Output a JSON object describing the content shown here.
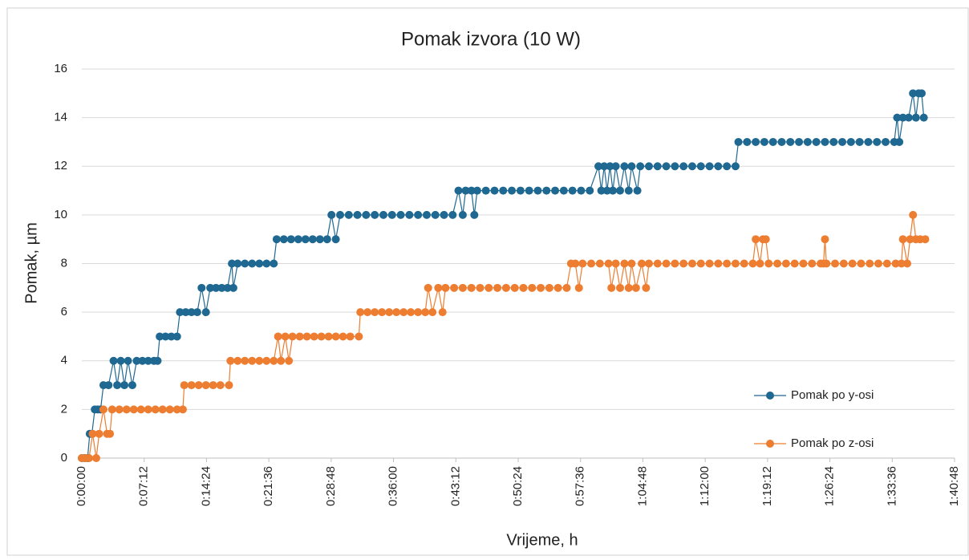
{
  "chart_data": {
    "type": "line",
    "title": "Pomak izvora (10 W)",
    "x_label": "Vrijeme, h",
    "y_label": "Pomak, µm",
    "xlim": [
      0,
      6048
    ],
    "xticks": [
      {
        "value": 0,
        "label": "0:00:00"
      },
      {
        "value": 432,
        "label": "0:07:12"
      },
      {
        "value": 864,
        "label": "0:14:24"
      },
      {
        "value": 1296,
        "label": "0:21:36"
      },
      {
        "value": 1728,
        "label": "0:28:48"
      },
      {
        "value": 2160,
        "label": "0:36:00"
      },
      {
        "value": 2592,
        "label": "0:43:12"
      },
      {
        "value": 3024,
        "label": "0:50:24"
      },
      {
        "value": 3456,
        "label": "0:57:36"
      },
      {
        "value": 3888,
        "label": "1:04:48"
      },
      {
        "value": 4320,
        "label": "1:12:00"
      },
      {
        "value": 4752,
        "label": "1:19:12"
      },
      {
        "value": 5184,
        "label": "1:26:24"
      },
      {
        "value": 5616,
        "label": "1:33:36"
      },
      {
        "value": 6048,
        "label": "1:40:48"
      }
    ],
    "ylim": [
      0,
      16
    ],
    "yticks": [
      0,
      2,
      4,
      6,
      8,
      10,
      12,
      14,
      16
    ],
    "grid": true,
    "legend_position": "right",
    "series": [
      {
        "name": "Pomak po y-osi",
        "color": "#1f6891",
        "x": [
          0,
          20,
          40,
          55,
          70,
          90,
          110,
          130,
          150,
          185,
          220,
          245,
          270,
          295,
          320,
          350,
          380,
          420,
          460,
          500,
          525,
          540,
          580,
          620,
          660,
          680,
          720,
          760,
          800,
          830,
          860,
          890,
          930,
          970,
          1010,
          1040,
          1050,
          1080,
          1130,
          1180,
          1230,
          1280,
          1330,
          1350,
          1400,
          1450,
          1500,
          1550,
          1600,
          1650,
          1700,
          1730,
          1760,
          1790,
          1850,
          1910,
          1970,
          2030,
          2090,
          2150,
          2210,
          2270,
          2330,
          2390,
          2450,
          2510,
          2570,
          2610,
          2640,
          2660,
          2700,
          2720,
          2740,
          2800,
          2860,
          2920,
          2980,
          3040,
          3100,
          3160,
          3220,
          3280,
          3340,
          3400,
          3460,
          3520,
          3580,
          3600,
          3620,
          3640,
          3660,
          3680,
          3700,
          3730,
          3760,
          3790,
          3810,
          3850,
          3870,
          3930,
          3990,
          4050,
          4110,
          4170,
          4230,
          4290,
          4350,
          4410,
          4470,
          4530,
          4550,
          4610,
          4670,
          4730,
          4790,
          4850,
          4910,
          4970,
          5030,
          5090,
          5150,
          5210,
          5270,
          5330,
          5390,
          5450,
          5510,
          5570,
          5630,
          5650,
          5665,
          5690,
          5730,
          5760,
          5780,
          5800,
          5820,
          5835
        ],
        "values": [
          0,
          0,
          0,
          1,
          1,
          2,
          2,
          2,
          3,
          3,
          4,
          3,
          4,
          3,
          4,
          3,
          4,
          4,
          4,
          4,
          4,
          5,
          5,
          5,
          5,
          6,
          6,
          6,
          6,
          7,
          6,
          7,
          7,
          7,
          7,
          8,
          7,
          8,
          8,
          8,
          8,
          8,
          8,
          9,
          9,
          9,
          9,
          9,
          9,
          9,
          9,
          10,
          9,
          10,
          10,
          10,
          10,
          10,
          10,
          10,
          10,
          10,
          10,
          10,
          10,
          10,
          10,
          11,
          10,
          11,
          11,
          10,
          11,
          11,
          11,
          11,
          11,
          11,
          11,
          11,
          11,
          11,
          11,
          11,
          11,
          11,
          12,
          11,
          12,
          11,
          12,
          11,
          12,
          11,
          12,
          11,
          12,
          11,
          12,
          12,
          12,
          12,
          12,
          12,
          12,
          12,
          12,
          12,
          12,
          12,
          13,
          13,
          13,
          13,
          13,
          13,
          13,
          13,
          13,
          13,
          13,
          13,
          13,
          13,
          13,
          13,
          13,
          13,
          13,
          14,
          13,
          14,
          14,
          15,
          14,
          15,
          15,
          14
        ]
      },
      {
        "name": "Pomak po z-osi",
        "color": "#ed7d31",
        "x": [
          0,
          25,
          50,
          75,
          100,
          120,
          150,
          175,
          195,
          210,
          260,
          310,
          360,
          410,
          460,
          510,
          560,
          610,
          660,
          700,
          710,
          760,
          810,
          860,
          910,
          960,
          1020,
          1030,
          1080,
          1130,
          1180,
          1230,
          1280,
          1330,
          1360,
          1380,
          1410,
          1435,
          1460,
          1510,
          1560,
          1610,
          1660,
          1710,
          1760,
          1810,
          1860,
          1920,
          1930,
          1980,
          2030,
          2080,
          2130,
          2180,
          2230,
          2280,
          2330,
          2380,
          2400,
          2430,
          2470,
          2500,
          2520,
          2580,
          2640,
          2700,
          2760,
          2820,
          2880,
          2940,
          3000,
          3060,
          3120,
          3180,
          3240,
          3300,
          3360,
          3390,
          3420,
          3445,
          3470,
          3530,
          3590,
          3650,
          3670,
          3700,
          3730,
          3760,
          3790,
          3810,
          3840,
          3880,
          3910,
          3930,
          3990,
          4050,
          4110,
          4170,
          4230,
          4290,
          4350,
          4410,
          4470,
          4530,
          4590,
          4650,
          4670,
          4700,
          4720,
          4740,
          4760,
          4820,
          4880,
          4940,
          5000,
          5060,
          5120,
          5140,
          5150,
          5160,
          5220,
          5280,
          5340,
          5400,
          5460,
          5520,
          5580,
          5640,
          5680,
          5690,
          5720,
          5740,
          5760,
          5780,
          5810,
          5845
        ],
        "values": [
          0,
          0,
          0,
          1,
          0,
          1,
          2,
          1,
          1,
          2,
          2,
          2,
          2,
          2,
          2,
          2,
          2,
          2,
          2,
          2,
          3,
          3,
          3,
          3,
          3,
          3,
          3,
          4,
          4,
          4,
          4,
          4,
          4,
          4,
          5,
          4,
          5,
          4,
          5,
          5,
          5,
          5,
          5,
          5,
          5,
          5,
          5,
          5,
          6,
          6,
          6,
          6,
          6,
          6,
          6,
          6,
          6,
          6,
          7,
          6,
          7,
          6,
          7,
          7,
          7,
          7,
          7,
          7,
          7,
          7,
          7,
          7,
          7,
          7,
          7,
          7,
          7,
          8,
          8,
          7,
          8,
          8,
          8,
          8,
          7,
          8,
          7,
          8,
          7,
          8,
          7,
          8,
          7,
          8,
          8,
          8,
          8,
          8,
          8,
          8,
          8,
          8,
          8,
          8,
          8,
          8,
          9,
          8,
          9,
          9,
          8,
          8,
          8,
          8,
          8,
          8,
          8,
          8,
          9,
          8,
          8,
          8,
          8,
          8,
          8,
          8,
          8,
          8,
          8,
          9,
          8,
          9,
          10,
          9,
          9,
          9
        ]
      }
    ]
  }
}
